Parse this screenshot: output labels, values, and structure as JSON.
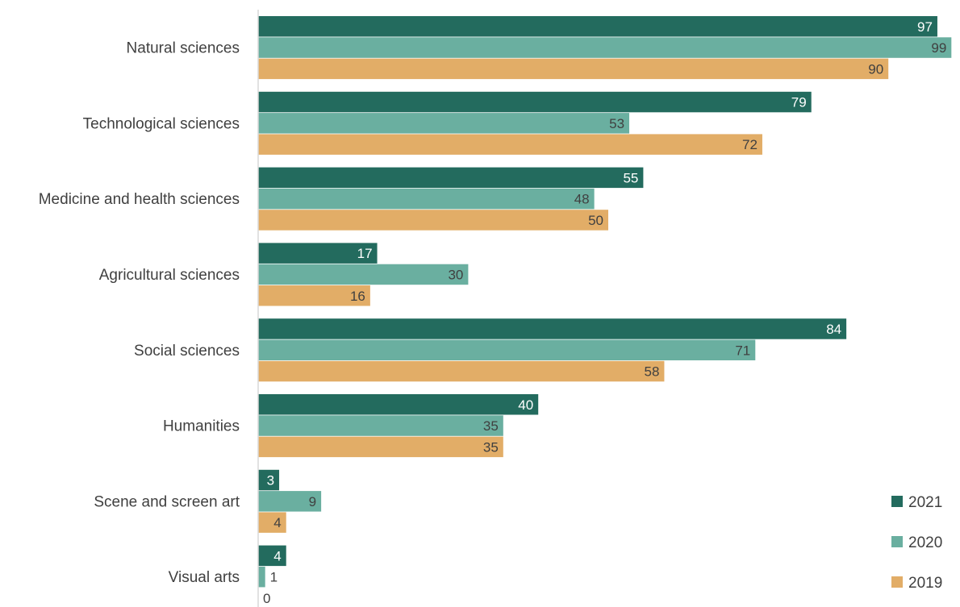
{
  "chart_data": {
    "type": "bar",
    "orientation": "horizontal",
    "categories": [
      "Natural sciences",
      "Technological sciences",
      "Medicine and health sciences",
      "Agricultural sciences",
      "Social sciences",
      "Humanities",
      "Scene and screen art",
      "Visual arts"
    ],
    "series": [
      {
        "name": "2021",
        "color": "#236b5e",
        "values": [
          97,
          79,
          55,
          17,
          84,
          40,
          3,
          4
        ]
      },
      {
        "name": "2020",
        "color": "#6aafa0",
        "values": [
          99,
          53,
          48,
          30,
          71,
          35,
          9,
          1
        ]
      },
      {
        "name": "2019",
        "color": "#e2ad67",
        "values": [
          90,
          72,
          50,
          16,
          58,
          35,
          4,
          0
        ]
      }
    ],
    "title": "",
    "xlabel": "",
    "ylabel": "",
    "xlim": [
      0,
      99
    ],
    "grid": false,
    "legend_position": "bottom-right"
  }
}
